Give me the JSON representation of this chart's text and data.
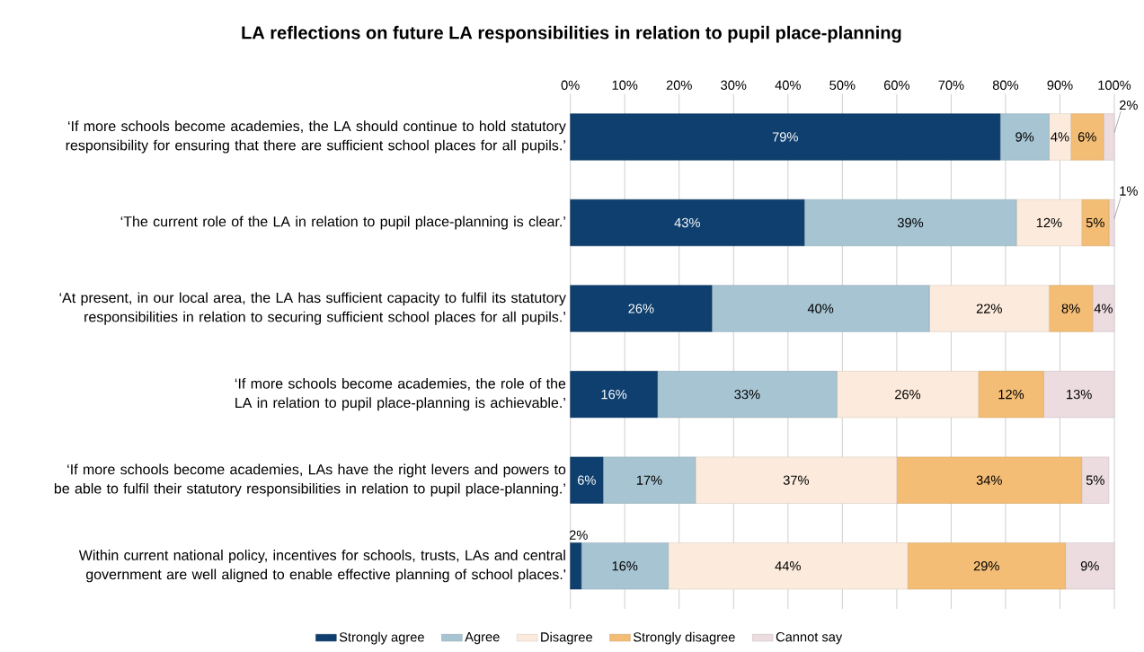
{
  "chart_data": {
    "type": "bar",
    "orientation": "horizontal",
    "stacked": true,
    "title": "LA reflections on future LA responsibilities in relation to pupil place-planning",
    "categories": [
      "‘If more schools become academies, the LA should continue to hold statutory responsibility for ensuring that there are sufficient school places for all pupils.’",
      "‘The current role of the LA in relation to pupil place-planning is clear.’",
      "‘At present, in our local area, the LA has sufficient capacity to fulfil its statutory responsibilities in relation to securing sufficient school places for all pupils.’",
      "‘If more schools become academies, the role of the LA in relation to pupil place-planning is achievable.’",
      "‘If more schools become academies, LAs have the right levers and powers to be able to fulfil their statutory responsibilities in relation to pupil place-planning.’",
      "Within current national policy, incentives for schools, trusts, LAs and central government are well aligned to enable effective planning of school places.'"
    ],
    "xlim": [
      0,
      100
    ],
    "xticks": [
      {
        "value": 0,
        "label": "0%"
      },
      {
        "value": 10,
        "label": "10%"
      },
      {
        "value": 20,
        "label": "20%"
      },
      {
        "value": 30,
        "label": "30%"
      },
      {
        "value": 40,
        "label": "40%"
      },
      {
        "value": 50,
        "label": "50%"
      },
      {
        "value": 60,
        "label": "60%"
      },
      {
        "value": 70,
        "label": "70%"
      },
      {
        "value": 80,
        "label": "80%"
      },
      {
        "value": 90,
        "label": "90%"
      },
      {
        "value": 100,
        "label": "100%"
      }
    ],
    "grid": "x",
    "legend": "bottom",
    "series": [
      {
        "name": "Strongly agree",
        "color": "#0e3f6e",
        "values": [
          79,
          43,
          26,
          16,
          6,
          2
        ],
        "value_labels": [
          "79%",
          "43%",
          "26%",
          "16%",
          "6%",
          "2%"
        ]
      },
      {
        "name": "Agree",
        "color": "#a7c4d3",
        "values": [
          9,
          39,
          40,
          33,
          17,
          16
        ],
        "value_labels": [
          "9%",
          "39%",
          "40%",
          "33%",
          "17%",
          "16%"
        ]
      },
      {
        "name": "Disagree",
        "color": "#fcebdc",
        "values": [
          4,
          12,
          22,
          26,
          37,
          44
        ],
        "value_labels": [
          "4%",
          "12%",
          "22%",
          "26%",
          "37%",
          "44%"
        ]
      },
      {
        "name": "Strongly disagree",
        "color": "#f3bd75",
        "values": [
          6,
          5,
          8,
          12,
          34,
          29
        ],
        "value_labels": [
          "6%",
          "5%",
          "8%",
          "12%",
          "34%",
          "29%"
        ]
      },
      {
        "name": "Cannot say",
        "color": "#ecdce0",
        "values": [
          2,
          1,
          4,
          13,
          5,
          9
        ],
        "value_labels": [
          "2%",
          "1%",
          "4%",
          "13%",
          "5%",
          "9%"
        ]
      }
    ]
  }
}
